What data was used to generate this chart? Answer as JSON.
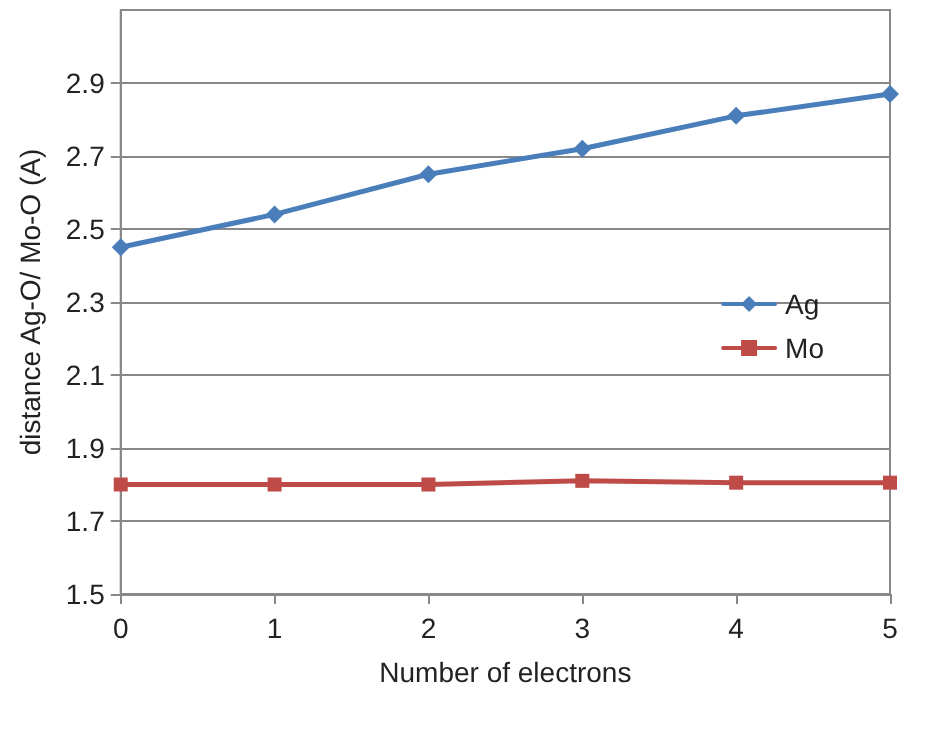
{
  "chart_data": {
    "type": "line",
    "xlabel": "Number of electrons",
    "ylabel": "distance Ag-O/ Mo-O (A)",
    "x": [
      0,
      1,
      2,
      3,
      4,
      5
    ],
    "series": [
      {
        "name": "Ag",
        "color": "#4a7ebb",
        "marker": "diamond",
        "values": [
          2.45,
          2.54,
          2.65,
          2.72,
          2.81,
          2.87
        ]
      },
      {
        "name": "Mo",
        "color": "#be4b48",
        "marker": "square",
        "values": [
          1.8,
          1.8,
          1.8,
          1.81,
          1.805,
          1.805
        ]
      }
    ],
    "xlim": [
      0,
      5
    ],
    "xticks": [
      0,
      1,
      2,
      3,
      4,
      5
    ],
    "ylim": [
      1.5,
      3.1
    ],
    "yticks": [
      1.5,
      1.7,
      1.9,
      2.1,
      2.3,
      2.5,
      2.7,
      2.9
    ],
    "grid": "y",
    "legend": "right",
    "line_style": "solid"
  }
}
